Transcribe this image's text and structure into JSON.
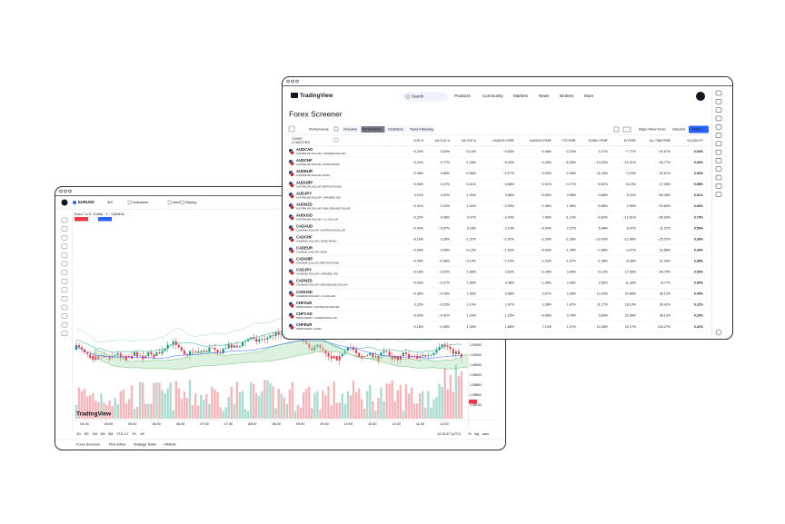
{
  "chart_window": {
    "symbol": "EURUSD",
    "interval": "1m",
    "toolbar": [
      "Indicators",
      "Alert",
      "Replay"
    ],
    "legend": "Euro / U.S. Dollar · 1 · OANDA",
    "price_labels": [
      "1.09050",
      "1.09000",
      "1.08950",
      "1.08900",
      "1.08850",
      "1.08800",
      "1.08750"
    ],
    "time_labels": [
      "04:30",
      "05:00",
      "05:30",
      "06:00",
      "06:30",
      "07:00",
      "07:30",
      "08:00",
      "08:30",
      "09:00",
      "09:30",
      "10:00",
      "10:30",
      "11:00",
      "11:30",
      "12:00"
    ],
    "ranges": [
      "1D",
      "5D",
      "1M",
      "3M",
      "6M",
      "YTD",
      "1Y",
      "5Y",
      "All"
    ],
    "clock": "12:15:47 (UTC)",
    "scale_buttons": [
      "%",
      "log",
      "auto"
    ],
    "bottom_tabs": [
      "Forex Screener",
      "Pine Editor",
      "Strategy Tester",
      "OANDA"
    ],
    "watermark": "TradingView"
  },
  "screener_window": {
    "logo": "TradingView",
    "search": "Search",
    "nav": [
      "Products",
      "Community",
      "Markets",
      "News",
      "Brokers",
      "More"
    ],
    "title": "Forex Screener",
    "view_menu": "Performance",
    "tabs": [
      "Overview",
      "Performance",
      "Oscillators",
      "Trend-Following"
    ],
    "active_tab": 1,
    "market_filter": "Major, Minor Forex",
    "selected": "Selected",
    "filters_button": "Filters",
    "table": {
      "ticker_header": "TICKER",
      "matches": "17 MATCHES",
      "columns": [
        "CHG %",
        "1W CHG %",
        "1M CHG %",
        "3-MONTH PERF",
        "6-MONTH PERF",
        "YTD PERF",
        "YEARLY PERF",
        "5Y PERF",
        "ALL TIME PERF",
        "VOLATILITY"
      ],
      "rows": [
        {
          "ticker": "AUDCAD",
          "description": "AUSTRALIAN DOLLAR / CANADIAN DOLLAR",
          "cells": [
            "−0.23%",
            "0.63%",
            "−0.14%",
            "−0.83%",
            "−3.48%",
            "−2.23%",
            "0.27%",
            "−7.77%",
            "−20.57%",
            "0.63%"
          ]
        },
        {
          "ticker": "AUDCHF",
          "description": "AUSTRALIAN DOLLAR / SWISS FRANC",
          "cells": [
            "−0.24%",
            "0.77%",
            "−1.28%",
            "−8.29%",
            "−4.25%",
            "−6.55%",
            "−13.23%",
            "−10.31%",
            "−36.77%",
            "0.53%"
          ]
        },
        {
          "ticker": "AUDEUR",
          "description": "AUSTRALIAN DOLLAR / EURO",
          "cells": [
            "−0.38%",
            "0.86%",
            "−0.56%",
            "−2.17%",
            "−4.29%",
            "−2.38%",
            "−11.18%",
            "−2.23%",
            "20.57%",
            "0.36%"
          ]
        },
        {
          "ticker": "AUDGBP",
          "description": "AUSTRALIAN DOLLAR / BRITISH POUND",
          "cells": [
            "−0.06%",
            "0.27%",
            "−0.31%",
            "−4.86%",
            "−2.91%",
            "−4.77%",
            "−8.51%",
            "−8.13%",
            "17.05%",
            "0.58%"
          ]
        },
        {
          "ticker": "AUDJPY",
          "description": "AUSTRALIAN DOLLAR / JAPANESE YEN",
          "cells": [
            "0.12%",
            "0.52%",
            "1.53%",
            "3.86%",
            "−0.85%",
            "3.98%",
            "−4.68%",
            "8.22%",
            "−69.38%",
            "0.61%"
          ]
        },
        {
          "ticker": "AUDNZD",
          "description": "AUSTRALIAN DOLLAR / NEW ZEALAND DOLLAR",
          "cells": [
            "−0.31%",
            "0.33%",
            "1.53%",
            "−2.05%",
            "−1.98%",
            "1.56%",
            "−0.88%",
            "2.55%",
            "−23.83%",
            "0.66%"
          ]
        },
        {
          "ticker": "AUDUSD",
          "description": "AUSTRALIAN DOLLAR / U.S. DOLLAR",
          "cells": [
            "−0.22%",
            "0.48%",
            "0.47%",
            "−3.43%",
            "7.46%",
            "−1.14%",
            "−9.82%",
            "−12.51%",
            "−95.93%",
            "0.70%"
          ]
        },
        {
          "ticker": "CADAUD",
          "description": "CANADIAN DOLLAR / AUSTRALIAN DOLLAR",
          "cells": [
            "−0.42%",
            "−0.67%",
            "0.18%",
            "2.14%",
            "−4.34%",
            "2.37%",
            "5.48%",
            "8.47%",
            "11.37%",
            "0.50%"
          ]
        },
        {
          "ticker": "CADCHF",
          "description": "CANADIAN DOLLAR / SWISS FRANC",
          "cells": [
            "−0.18%",
            "0.28%",
            "−1.37%",
            "−2.97%",
            "−2.39%",
            "−1.36%",
            "−10.43%",
            "−12.98%",
            "−25.37%",
            "0.36%"
          ]
        },
        {
          "ticker": "CADEUR",
          "description": "CANADIAN DOLLAR / EURO",
          "cells": [
            "−0.28%",
            "0.08%",
            "−0.13%",
            "−1.52%",
            "−0.03%",
            "−1.78%",
            "−7.88%",
            "−3.07%",
            "16.86%",
            "0.34%"
          ]
        },
        {
          "ticker": "CADGBP",
          "description": "CANADIAN DOLLAR / BRITISH POUND",
          "cells": [
            "−0.06%",
            "−0.38%",
            "−0.19%",
            "−7.19%",
            "−1.23%",
            "−1.67%",
            "−1.98%",
            "−8.38%",
            "21.30%",
            "0.38%"
          ]
        },
        {
          "ticker": "CADJPY",
          "description": "CANADIAN DOLLAR / JAPANESE YEN",
          "cells": [
            "−0.18%",
            "−0.02%",
            "1.88%",
            "3.63%",
            "−0.28%",
            "3.46%",
            "−0.19%",
            "17.08%",
            "−44.70%",
            "0.53%"
          ]
        },
        {
          "ticker": "CADNZD",
          "description": "CANADIAN DOLLAR / NEW ZEALAND DOLLAR",
          "cells": [
            "−0.03%",
            "−0.27%",
            "1.85%",
            "3.48%",
            "−1.98%",
            "3.48%",
            "2.59%",
            "11.28%",
            "−8.77%",
            "0.54%"
          ]
        },
        {
          "ticker": "CADUSD",
          "description": "CANADIAN DOLLAR / U.S. DOLLAR",
          "cells": [
            "−0.38%",
            "−0.78%",
            "1.55%",
            "0.88%",
            "2.57%",
            "2.38%",
            "12.34%",
            "22.88%",
            "38.13%",
            "0.49%"
          ]
        },
        {
          "ticker": "CHFAUD",
          "description": "SWISS FRANC / AUSTRALIAN DOLLAR",
          "cells": [
            "0.22%",
            "−0.15%",
            "1.14%",
            "2.67%",
            "3.38%",
            "1.87%",
            "11.17%",
            "18.13%",
            "28.41%",
            "0.22%"
          ]
        },
        {
          "ticker": "CHFCAD",
          "description": "SWISS FRANC / CANADIAN DOLLAR",
          "cells": [
            "−0.03%",
            "−0.41%",
            "1.03%",
            "1.25%",
            "−0.06%",
            "0.78%",
            "3.84%",
            "22.98%",
            "38.13%",
            "0.23%"
          ]
        },
        {
          "ticker": "CHFEUR",
          "description": "SWISS FRANC / EURO",
          "cells": [
            "−0.18%",
            "−0.38%",
            "1.39%",
            "1.88%",
            "7.13%",
            "1.27%",
            "10.38%",
            "22.17%",
            "126.27%",
            "0.22%"
          ]
        }
      ]
    }
  }
}
